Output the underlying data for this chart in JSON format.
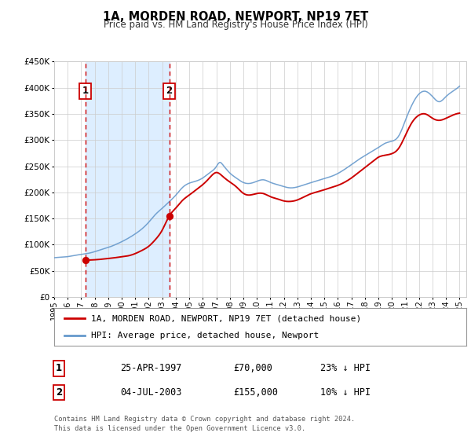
{
  "title": "1A, MORDEN ROAD, NEWPORT, NP19 7ET",
  "subtitle": "Price paid vs. HM Land Registry's House Price Index (HPI)",
  "ylim": [
    0,
    450000
  ],
  "xlim_start": 1995.0,
  "xlim_end": 2025.5,
  "ytick_labels": [
    "£0",
    "£50K",
    "£100K",
    "£150K",
    "£200K",
    "£250K",
    "£300K",
    "£350K",
    "£400K",
    "£450K"
  ],
  "ytick_values": [
    0,
    50000,
    100000,
    150000,
    200000,
    250000,
    300000,
    350000,
    400000,
    450000
  ],
  "xtick_years": [
    1995,
    1996,
    1997,
    1998,
    1999,
    2000,
    2001,
    2002,
    2003,
    2004,
    2005,
    2006,
    2007,
    2008,
    2009,
    2010,
    2011,
    2012,
    2013,
    2014,
    2015,
    2016,
    2017,
    2018,
    2019,
    2020,
    2021,
    2022,
    2023,
    2024,
    2025
  ],
  "sale1_date": 1997.31,
  "sale1_price": 70000,
  "sale1_label": "1",
  "sale1_display": "25-APR-1997",
  "sale1_price_display": "£70,000",
  "sale1_pct": "23% ↓ HPI",
  "sale2_date": 2003.52,
  "sale2_price": 155000,
  "sale2_label": "2",
  "sale2_display": "04-JUL-2003",
  "sale2_price_display": "£155,000",
  "sale2_pct": "10% ↓ HPI",
  "red_color": "#cc0000",
  "blue_color": "#6699cc",
  "shaded_color": "#ddeeff",
  "grid_color": "#cccccc",
  "background_color": "#ffffff",
  "legend_label_red": "1A, MORDEN ROAD, NEWPORT, NP19 7ET (detached house)",
  "legend_label_blue": "HPI: Average price, detached house, Newport",
  "footer1": "Contains HM Land Registry data © Crown copyright and database right 2024.",
  "footer2": "This data is licensed under the Open Government Licence v3.0.",
  "hpi_years": [
    1995.0,
    1995.5,
    1996.0,
    1996.5,
    1997.0,
    1997.5,
    1998.0,
    1998.5,
    1999.0,
    1999.5,
    2000.0,
    2000.5,
    2001.0,
    2001.5,
    2002.0,
    2002.5,
    2003.0,
    2003.5,
    2004.0,
    2004.5,
    2005.0,
    2005.5,
    2006.0,
    2006.5,
    2007.0,
    2007.25,
    2007.5,
    2007.75,
    2008.0,
    2008.5,
    2009.0,
    2009.5,
    2010.0,
    2010.5,
    2011.0,
    2011.5,
    2012.0,
    2012.5,
    2013.0,
    2013.5,
    2014.0,
    2014.5,
    2015.0,
    2015.5,
    2016.0,
    2016.5,
    2017.0,
    2017.5,
    2018.0,
    2018.5,
    2019.0,
    2019.5,
    2020.0,
    2020.5,
    2021.0,
    2021.5,
    2022.0,
    2022.5,
    2023.0,
    2023.5,
    2024.0,
    2024.5,
    2025.0
  ],
  "hpi_prices": [
    75000,
    76000,
    77000,
    79000,
    81000,
    83000,
    86000,
    90000,
    94000,
    99000,
    105000,
    112000,
    120000,
    130000,
    143000,
    158000,
    170000,
    182000,
    195000,
    210000,
    218000,
    222000,
    228000,
    238000,
    250000,
    258000,
    253000,
    245000,
    238000,
    228000,
    220000,
    218000,
    222000,
    225000,
    220000,
    216000,
    212000,
    210000,
    212000,
    216000,
    220000,
    224000,
    228000,
    232000,
    238000,
    246000,
    255000,
    264000,
    272000,
    280000,
    288000,
    296000,
    300000,
    310000,
    340000,
    370000,
    390000,
    395000,
    385000,
    375000,
    385000,
    395000,
    405000
  ],
  "red_years": [
    1997.31,
    1997.6,
    1998.0,
    1998.5,
    1999.0,
    1999.5,
    2000.0,
    2000.5,
    2001.0,
    2001.5,
    2002.0,
    2002.5,
    2003.0,
    2003.52,
    2004.0,
    2004.5,
    2005.0,
    2005.5,
    2006.0,
    2006.5,
    2007.0,
    2007.5,
    2008.0,
    2008.5,
    2009.0,
    2009.5,
    2010.0,
    2010.5,
    2011.0,
    2011.5,
    2012.0,
    2012.5,
    2013.0,
    2013.5,
    2014.0,
    2014.5,
    2015.0,
    2015.5,
    2016.0,
    2016.5,
    2017.0,
    2017.5,
    2018.0,
    2018.5,
    2019.0,
    2019.5,
    2020.0,
    2020.5,
    2021.0,
    2021.5,
    2022.0,
    2022.5,
    2023.0,
    2023.5,
    2024.0,
    2024.5,
    2025.0
  ],
  "red_prices": [
    70000,
    70500,
    71000,
    72000,
    73500,
    75000,
    77000,
    79000,
    83000,
    89000,
    97000,
    110000,
    128000,
    155000,
    170000,
    185000,
    195000,
    205000,
    215000,
    228000,
    238000,
    230000,
    220000,
    210000,
    198000,
    195000,
    198000,
    198000,
    192000,
    188000,
    184000,
    183000,
    186000,
    192000,
    198000,
    202000,
    206000,
    210000,
    214000,
    220000,
    228000,
    238000,
    248000,
    258000,
    268000,
    272000,
    275000,
    285000,
    310000,
    335000,
    348000,
    350000,
    342000,
    338000,
    342000,
    348000,
    352000
  ]
}
